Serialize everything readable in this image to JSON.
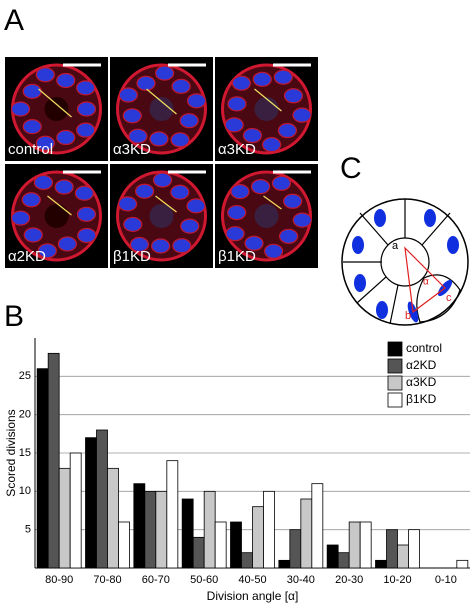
{
  "panels": {
    "a": "A",
    "b": "B",
    "c": "C"
  },
  "micrographs": [
    {
      "label": "control"
    },
    {
      "label": "α3KD"
    },
    {
      "label": "α3KD"
    },
    {
      "label": "α2KD"
    },
    {
      "label": "β1KD"
    },
    {
      "label": "β1KD"
    }
  ],
  "diagram": {
    "labels": [
      "a",
      "b",
      "c",
      "α"
    ]
  },
  "chart_data": {
    "type": "bar",
    "xlabel": "Division angle [α]",
    "ylabel": "Scored divisions",
    "categories": [
      "80-90",
      "70-80",
      "60-70",
      "50-60",
      "40-50",
      "30-40",
      "20-30",
      "10-20",
      "0-10"
    ],
    "series": [
      {
        "name": "control",
        "color": "#000000",
        "values": [
          26,
          17,
          11,
          9,
          6,
          1,
          3,
          1,
          0
        ]
      },
      {
        "name": "α2KD",
        "color": "#555555",
        "values": [
          28,
          18,
          10,
          4,
          2,
          5,
          2,
          5,
          0
        ]
      },
      {
        "name": "α3KD",
        "color": "#c8c8c8",
        "values": [
          13,
          13,
          10,
          10,
          8,
          9,
          6,
          3,
          0
        ]
      },
      {
        "name": "β1KD",
        "color": "#ffffff",
        "values": [
          15,
          6,
          14,
          6,
          10,
          11,
          6,
          5,
          1
        ]
      }
    ],
    "ylim": [
      0,
      30
    ],
    "yticks": [
      5,
      10,
      15,
      20,
      25
    ],
    "grid": true,
    "legend": "top-right"
  }
}
